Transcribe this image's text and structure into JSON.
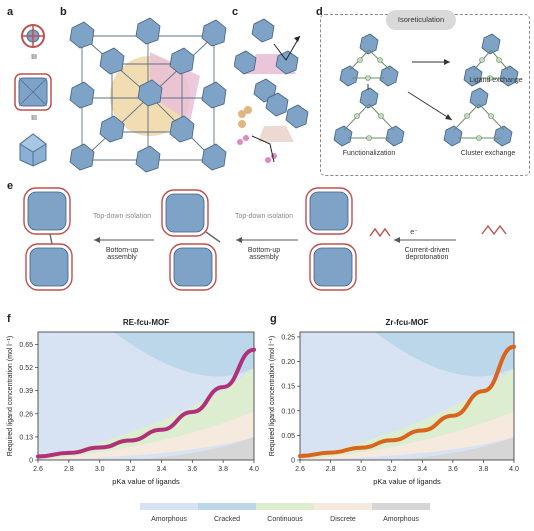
{
  "panels": {
    "a": "a",
    "b": "b",
    "c": "c",
    "d": "d",
    "e": "e",
    "f": "f",
    "g": "g"
  },
  "panel_a": {
    "equiv1": "III",
    "equiv2": "III"
  },
  "panel_d": {
    "top_pill": "Isoreticulation",
    "ligand_exchange": "Ligand exchange",
    "functionalization": "Functionalization",
    "cluster_exchange": "Cluster exchange"
  },
  "panel_e": {
    "top_down_1": "Top-down isolation",
    "bottom_up_1": "Bottom-up assembly",
    "top_down_2": "Top-down isolation",
    "bottom_up_2": "Bottom-up assembly",
    "electron": "e⁻",
    "current_driven": "Current-driven deprotonation"
  },
  "colors": {
    "amorphous_left": "#d7e3f2",
    "cracked": "#bcd7ea",
    "continuous": "#dcedd0",
    "discrete": "#f6e9de",
    "amorphous_right": "#d6d6d6",
    "curve_f": "#b0307a",
    "curve_g": "#d9651c",
    "cluster_blue": "#7fa3c6",
    "cluster_dark": "#4e6f93",
    "linker_red": "#c0504d"
  },
  "chart_data": [
    {
      "type": "area",
      "panel": "f",
      "title": "RE-fcu-MOF",
      "xlabel": "pKa value of ligands",
      "ylabel": "Required ligand concentration (mol l⁻¹)",
      "xlim": [
        2.6,
        4.0
      ],
      "ylim": [
        0,
        0.72
      ],
      "x_ticks": [
        "2.6",
        "2.8",
        "3.0",
        "3.2",
        "3.4",
        "3.6",
        "3.8",
        "4.0"
      ],
      "y_ticks": [
        "0",
        "0.13",
        "0.26",
        "0.39",
        "0.52",
        "0.65"
      ],
      "y_tick_values": [
        0,
        0.13,
        0.26,
        0.39,
        0.52,
        0.65
      ],
      "curve": {
        "x": [
          2.6,
          2.8,
          3.0,
          3.2,
          3.4,
          3.6,
          3.8,
          4.0
        ],
        "y": [
          0.02,
          0.04,
          0.07,
          0.11,
          0.17,
          0.27,
          0.41,
          0.62
        ]
      }
    },
    {
      "type": "area",
      "panel": "g",
      "title": "Zr-fcu-MOF",
      "xlabel": "pKa value of ligands",
      "ylabel": "Required ligand concentration (mol l⁻¹)",
      "xlim": [
        2.6,
        4.0
      ],
      "ylim": [
        0,
        0.26
      ],
      "x_ticks": [
        "2.6",
        "2.8",
        "3.0",
        "3.2",
        "3.4",
        "3.6",
        "3.8",
        "4.0"
      ],
      "y_ticks": [
        "0",
        "0.05",
        "0.10",
        "0.15",
        "0.20",
        "0.25"
      ],
      "y_tick_values": [
        0,
        0.05,
        0.1,
        0.15,
        0.2,
        0.25
      ],
      "curve": {
        "x": [
          2.6,
          2.8,
          3.0,
          3.2,
          3.4,
          3.6,
          3.8,
          4.0
        ],
        "y": [
          0.008,
          0.015,
          0.025,
          0.04,
          0.06,
          0.09,
          0.14,
          0.23
        ]
      }
    }
  ],
  "legend": {
    "items": [
      "Amorphous",
      "Cracked",
      "Continuous",
      "Discrete",
      "Amorphous"
    ]
  }
}
